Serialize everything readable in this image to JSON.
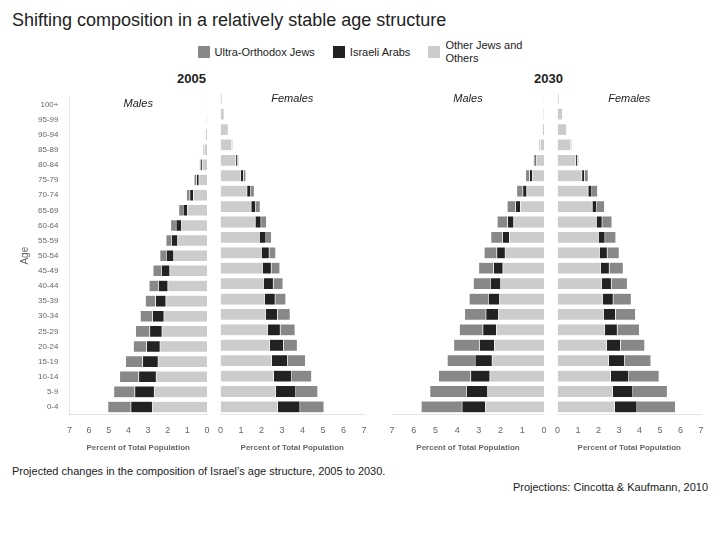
{
  "title": "Shifting composition in a relatively stable age structure",
  "caption": "Projected changes in the composition of Israel’s age structure, 2005 to 2030.",
  "source": "Projections: Cincotta & Kaufmann, 2010",
  "chart_data": [
    {
      "type": "bar",
      "orientation": "horizontal",
      "stacked": true,
      "grid": false,
      "title": "2005",
      "annotations": [
        "Males"
      ],
      "ylabel": "Age",
      "xlabel": "Percent of Total Population",
      "xlim": [
        7,
        0
      ],
      "xticks": [
        0,
        1,
        2,
        3,
        4,
        5,
        6,
        7
      ],
      "categories": [
        "100+",
        "95-99",
        "90-94",
        "85-89",
        "80-84",
        "75-79",
        "70-74",
        "65-69",
        "60-64",
        "55-59",
        "50-54",
        "45-49",
        "40-44",
        "35-39",
        "30-34",
        "25-29",
        "20-24",
        "15-19",
        "10-14",
        "5-9",
        "0-4"
      ],
      "series": [
        {
          "name": "Other Jews and\nOthers",
          "color": "#cccccc",
          "values": [
            0.02,
            0.04,
            0.08,
            0.15,
            0.25,
            0.42,
            0.7,
            1.0,
            1.3,
            1.5,
            1.7,
            1.9,
            2.0,
            2.1,
            2.2,
            2.3,
            2.4,
            2.5,
            2.6,
            2.7,
            2.8
          ]
        },
        {
          "name": "Israeli Arabs",
          "color": "#222222",
          "values": [
            0.0,
            0.0,
            0.0,
            0.03,
            0.07,
            0.12,
            0.18,
            0.22,
            0.28,
            0.32,
            0.38,
            0.43,
            0.48,
            0.52,
            0.58,
            0.62,
            0.68,
            0.78,
            0.88,
            0.98,
            1.08
          ]
        },
        {
          "name": "Ultra-Orthodox Jews",
          "color": "#888888",
          "values": [
            0.0,
            0.0,
            0.0,
            0.03,
            0.07,
            0.12,
            0.17,
            0.22,
            0.27,
            0.27,
            0.32,
            0.42,
            0.47,
            0.52,
            0.62,
            0.72,
            0.67,
            0.87,
            0.97,
            1.07,
            1.17
          ]
        }
      ]
    },
    {
      "type": "bar",
      "orientation": "horizontal",
      "stacked": true,
      "grid": false,
      "annotations": [
        "Females"
      ],
      "legend": "top",
      "tick_labels": "x",
      "xlabel": "Percent of Total Population",
      "xlim": [
        0,
        7
      ],
      "xticks": [
        0,
        1,
        2,
        3,
        4,
        5,
        6,
        7
      ],
      "categories": [
        "100+",
        "95-99",
        "90-94",
        "85-89",
        "80-84",
        "75-79",
        "70-74",
        "65-69",
        "60-64",
        "55-59",
        "50-54",
        "45-49",
        "40-44",
        "35-39",
        "30-34",
        "25-29",
        "20-24",
        "15-19",
        "10-14",
        "5-9",
        "0-4"
      ],
      "series": [
        {
          "name": "Other Jews and\nOthers",
          "color": "#cccccc",
          "values": [
            0.08,
            0.18,
            0.38,
            0.55,
            0.75,
            1.0,
            1.3,
            1.5,
            1.7,
            1.9,
            2.0,
            2.05,
            2.1,
            2.15,
            2.2,
            2.3,
            2.4,
            2.5,
            2.6,
            2.7,
            2.8
          ]
        },
        {
          "name": "Israeli Arabs",
          "color": "#222222",
          "values": [
            0.0,
            0.0,
            0.0,
            0.03,
            0.07,
            0.12,
            0.18,
            0.22,
            0.28,
            0.32,
            0.38,
            0.43,
            0.48,
            0.52,
            0.58,
            0.62,
            0.68,
            0.78,
            0.88,
            0.98,
            1.08
          ]
        },
        {
          "name": "Ultra-Orthodox Jews",
          "color": "#888888",
          "values": [
            0.0,
            0.0,
            0.0,
            0.03,
            0.07,
            0.12,
            0.17,
            0.22,
            0.27,
            0.27,
            0.32,
            0.42,
            0.47,
            0.52,
            0.62,
            0.72,
            0.67,
            0.87,
            0.97,
            1.07,
            1.17
          ]
        }
      ]
    },
    {
      "type": "bar",
      "orientation": "horizontal",
      "stacked": true,
      "grid": false,
      "title": "2030",
      "annotations": [
        "Males"
      ],
      "tick_labels": "x",
      "xlabel": "Percent of Total Population",
      "xlim": [
        7,
        0
      ],
      "xticks": [
        0,
        1,
        2,
        3,
        4,
        5,
        6,
        7
      ],
      "categories": [
        "100+",
        "95-99",
        "90-94",
        "85-89",
        "80-84",
        "75-79",
        "70-74",
        "65-69",
        "60-64",
        "55-59",
        "50-54",
        "45-49",
        "40-44",
        "35-39",
        "30-34",
        "25-29",
        "20-24",
        "15-19",
        "10-14",
        "5-9",
        "0-4"
      ],
      "series": [
        {
          "name": "Other Jews and\nOthers",
          "color": "#cccccc",
          "values": [
            0.02,
            0.04,
            0.08,
            0.18,
            0.35,
            0.55,
            0.8,
            1.1,
            1.4,
            1.6,
            1.8,
            1.9,
            2.0,
            2.05,
            2.1,
            2.2,
            2.3,
            2.4,
            2.5,
            2.6,
            2.7
          ]
        },
        {
          "name": "Israeli Arabs",
          "color": "#222222",
          "values": [
            0.0,
            0.0,
            0.0,
            0.03,
            0.07,
            0.12,
            0.18,
            0.22,
            0.28,
            0.32,
            0.38,
            0.43,
            0.48,
            0.52,
            0.58,
            0.62,
            0.68,
            0.78,
            0.88,
            0.98,
            1.08
          ]
        },
        {
          "name": "Ultra-Orthodox Jews",
          "color": "#888888",
          "values": [
            0.0,
            0.0,
            0.0,
            0.03,
            0.07,
            0.18,
            0.28,
            0.38,
            0.48,
            0.53,
            0.58,
            0.68,
            0.78,
            0.88,
            0.98,
            1.08,
            1.18,
            1.28,
            1.48,
            1.68,
            1.88
          ]
        }
      ]
    },
    {
      "type": "bar",
      "orientation": "horizontal",
      "stacked": true,
      "grid": false,
      "annotations": [
        "Females"
      ],
      "tick_labels": "x",
      "xlabel": "Percent of Total Population",
      "xlim": [
        0,
        7
      ],
      "xticks": [
        0,
        1,
        2,
        3,
        4,
        5,
        6,
        7
      ],
      "categories": [
        "100+",
        "95-99",
        "90-94",
        "85-89",
        "80-84",
        "75-79",
        "70-74",
        "65-69",
        "60-64",
        "55-59",
        "50-54",
        "45-49",
        "40-44",
        "35-39",
        "30-34",
        "25-29",
        "20-24",
        "15-19",
        "10-14",
        "5-9",
        "0-4"
      ],
      "series": [
        {
          "name": "Other Jews and\nOthers",
          "color": "#cccccc",
          "values": [
            0.08,
            0.25,
            0.45,
            0.65,
            0.9,
            1.2,
            1.5,
            1.7,
            1.9,
            2.0,
            2.05,
            2.1,
            2.15,
            2.2,
            2.25,
            2.3,
            2.4,
            2.5,
            2.6,
            2.7,
            2.8
          ]
        },
        {
          "name": "Israeli Arabs",
          "color": "#222222",
          "values": [
            0.0,
            0.0,
            0.0,
            0.03,
            0.07,
            0.12,
            0.18,
            0.22,
            0.28,
            0.32,
            0.38,
            0.43,
            0.48,
            0.52,
            0.58,
            0.62,
            0.68,
            0.78,
            0.88,
            0.98,
            1.08
          ]
        },
        {
          "name": "Ultra-Orthodox Jews",
          "color": "#888888",
          "values": [
            0.0,
            0.0,
            0.0,
            0.03,
            0.07,
            0.18,
            0.28,
            0.38,
            0.48,
            0.53,
            0.58,
            0.68,
            0.78,
            0.88,
            0.98,
            1.08,
            1.18,
            1.28,
            1.48,
            1.68,
            1.88
          ]
        }
      ]
    }
  ]
}
